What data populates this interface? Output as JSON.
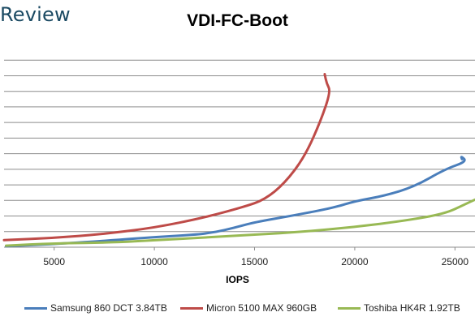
{
  "brand": "Review",
  "chart_data": {
    "type": "line",
    "title": "VDI-FC-Boot",
    "xlabel": "IOPS",
    "ylabel": "",
    "xlim": [
      2500,
      26000
    ],
    "x_ticks": [
      5000,
      10000,
      15000,
      20000,
      25000
    ],
    "x_tick_labels": [
      "5000",
      "10000",
      "15000",
      "20000",
      "25000"
    ],
    "ylim": [
      0,
      13
    ],
    "y_gridlines": [
      1,
      2,
      3,
      4,
      5,
      6,
      7,
      8,
      9,
      10,
      11,
      12
    ],
    "grid": "horizontal",
    "legend_position": "bottom",
    "series": [
      {
        "name": "Samsung 860 DCT 3.84TB",
        "color": "#4a7ebb",
        "points": [
          [
            2600,
            0.06
          ],
          [
            5000,
            0.2
          ],
          [
            8000,
            0.45
          ],
          [
            10000,
            0.65
          ],
          [
            12000,
            0.8
          ],
          [
            13000,
            0.95
          ],
          [
            14000,
            1.25
          ],
          [
            15000,
            1.6
          ],
          [
            17000,
            2.05
          ],
          [
            19000,
            2.55
          ],
          [
            20000,
            2.95
          ],
          [
            21500,
            3.3
          ],
          [
            23000,
            3.9
          ],
          [
            24500,
            5.0
          ],
          [
            25600,
            5.5
          ],
          [
            25300,
            5.85
          ],
          [
            25350,
            5.65
          ]
        ]
      },
      {
        "name": "Micron 5100 MAX 960GB",
        "color": "#be4b48",
        "points": [
          [
            2500,
            0.45
          ],
          [
            5000,
            0.6
          ],
          [
            7500,
            0.85
          ],
          [
            10000,
            1.25
          ],
          [
            12500,
            1.9
          ],
          [
            14500,
            2.6
          ],
          [
            15500,
            3.05
          ],
          [
            16500,
            4.1
          ],
          [
            17500,
            5.8
          ],
          [
            18300,
            8.1
          ],
          [
            18800,
            10.0
          ],
          [
            18600,
            10.5
          ],
          [
            18500,
            11.1
          ]
        ]
      },
      {
        "name": "Toshiba HK4R 1.92TB",
        "color": "#98b954",
        "points": [
          [
            2600,
            0.1
          ],
          [
            5000,
            0.25
          ],
          [
            8000,
            0.3
          ],
          [
            10000,
            0.45
          ],
          [
            12500,
            0.62
          ],
          [
            15000,
            0.8
          ],
          [
            17500,
            1.0
          ],
          [
            20000,
            1.3
          ],
          [
            22500,
            1.7
          ],
          [
            24500,
            2.15
          ],
          [
            25500,
            2.75
          ],
          [
            26000,
            3.05
          ]
        ]
      }
    ]
  }
}
